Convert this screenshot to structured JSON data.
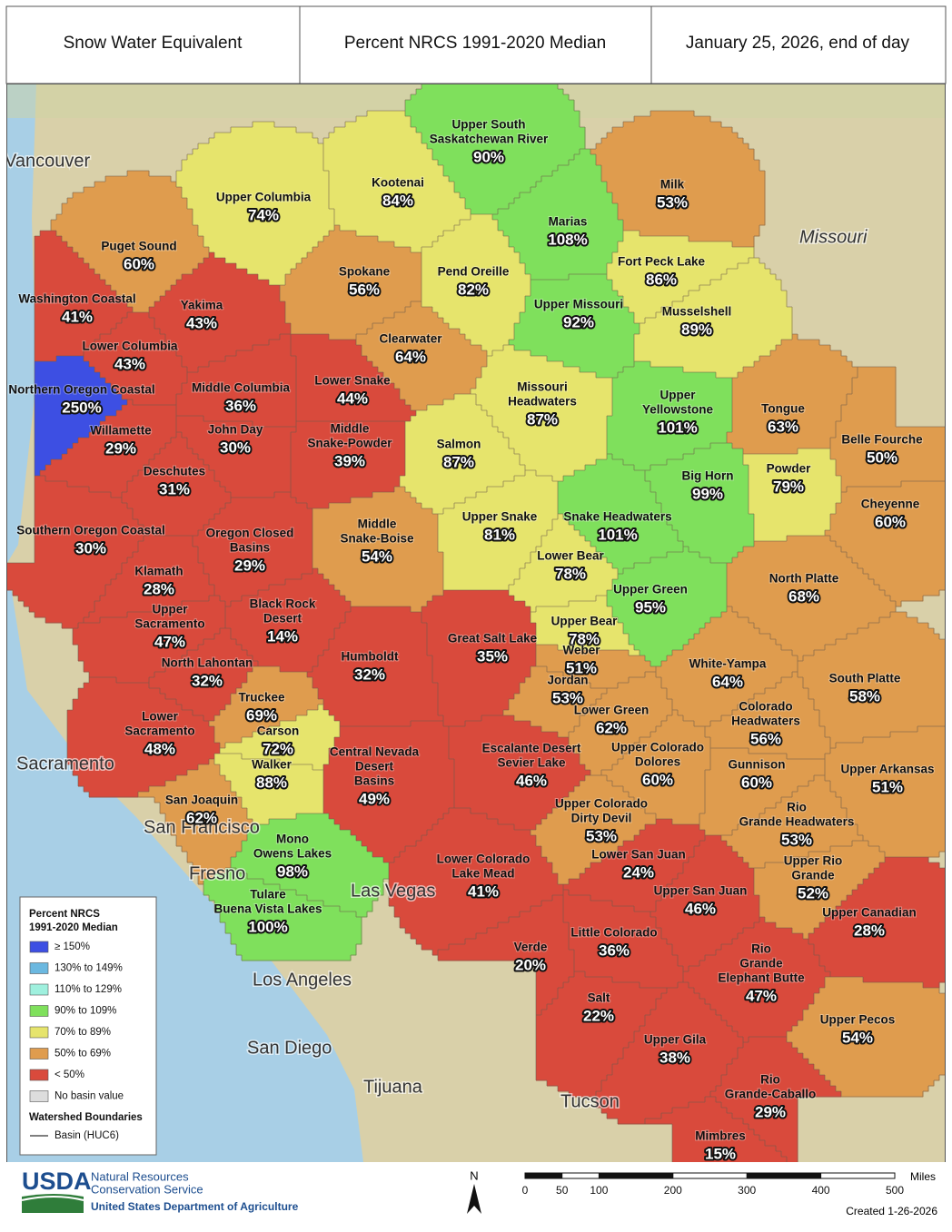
{
  "header": {
    "left": "Snow Water Equivalent",
    "center": "Percent NRCS 1991-2020 Median",
    "right": "January 25, 2026, end of day"
  },
  "basins": [
    {
      "name": [
        "Upper South",
        "Saskatchewan River"
      ],
      "percent": "90%",
      "color": "#7fe05c"
    },
    {
      "name": [
        "Kootenai"
      ],
      "percent": "84%",
      "color": "#e6e46c"
    },
    {
      "name": [
        "Upper Columbia"
      ],
      "percent": "74%",
      "color": "#e6e46c"
    },
    {
      "name": [
        "Milk"
      ],
      "percent": "53%",
      "color": "#df9c4e"
    },
    {
      "name": [
        "Marias"
      ],
      "percent": "108%",
      "color": "#7fe05c"
    },
    {
      "name": [
        "Puget Sound"
      ],
      "percent": "60%",
      "color": "#df9c4e"
    },
    {
      "name": [
        "Spokane"
      ],
      "percent": "56%",
      "color": "#df9c4e"
    },
    {
      "name": [
        "Pend Oreille"
      ],
      "percent": "82%",
      "color": "#e6e46c"
    },
    {
      "name": [
        "Fort Peck Lake"
      ],
      "percent": "86%",
      "color": "#e6e46c"
    },
    {
      "name": [
        "Washington Coastal"
      ],
      "percent": "41%",
      "color": "#d94a3c"
    },
    {
      "name": [
        "Yakima"
      ],
      "percent": "43%",
      "color": "#d94a3c"
    },
    {
      "name": [
        "Upper Missouri"
      ],
      "percent": "92%",
      "color": "#7fe05c"
    },
    {
      "name": [
        "Musselshell"
      ],
      "percent": "89%",
      "color": "#e6e46c"
    },
    {
      "name": [
        "Clearwater"
      ],
      "percent": "64%",
      "color": "#df9c4e"
    },
    {
      "name": [
        "Lower Columbia"
      ],
      "percent": "43%",
      "color": "#d94a3c"
    },
    {
      "name": [
        "Northern Oregon Coastal"
      ],
      "percent": "250%",
      "color": "#3d4fe3"
    },
    {
      "name": [
        "Middle Columbia"
      ],
      "percent": "36%",
      "color": "#d94a3c"
    },
    {
      "name": [
        "Lower Snake"
      ],
      "percent": "44%",
      "color": "#d94a3c"
    },
    {
      "name": [
        "Missouri",
        "Headwaters"
      ],
      "percent": "87%",
      "color": "#e6e46c"
    },
    {
      "name": [
        "Upper",
        "Yellowstone"
      ],
      "percent": "101%",
      "color": "#7fe05c"
    },
    {
      "name": [
        "Tongue"
      ],
      "percent": "63%",
      "color": "#df9c4e"
    },
    {
      "name": [
        "Willamette"
      ],
      "percent": "29%",
      "color": "#d94a3c"
    },
    {
      "name": [
        "John Day"
      ],
      "percent": "30%",
      "color": "#d94a3c"
    },
    {
      "name": [
        "Middle",
        "Snake-Powder"
      ],
      "percent": "39%",
      "color": "#d94a3c"
    },
    {
      "name": [
        "Salmon"
      ],
      "percent": "87%",
      "color": "#e6e46c"
    },
    {
      "name": [
        "Belle Fourche"
      ],
      "percent": "50%",
      "color": "#df9c4e"
    },
    {
      "name": [
        "Powder"
      ],
      "percent": "79%",
      "color": "#e6e46c"
    },
    {
      "name": [
        "Big Horn"
      ],
      "percent": "99%",
      "color": "#7fe05c"
    },
    {
      "name": [
        "Deschutes"
      ],
      "percent": "31%",
      "color": "#d94a3c"
    },
    {
      "name": [
        "Cheyenne"
      ],
      "percent": "60%",
      "color": "#df9c4e"
    },
    {
      "name": [
        "Southern Oregon Coastal"
      ],
      "percent": "30%",
      "color": "#d94a3c"
    },
    {
      "name": [
        "Oregon Closed",
        "Basins"
      ],
      "percent": "29%",
      "color": "#d94a3c"
    },
    {
      "name": [
        "Middle",
        "Snake-Boise"
      ],
      "percent": "54%",
      "color": "#df9c4e"
    },
    {
      "name": [
        "Upper Snake"
      ],
      "percent": "81%",
      "color": "#e6e46c"
    },
    {
      "name": [
        "Snake Headwaters"
      ],
      "percent": "101%",
      "color": "#7fe05c"
    },
    {
      "name": [
        "Lower Bear"
      ],
      "percent": "78%",
      "color": "#e6e46c"
    },
    {
      "name": [
        "North Platte"
      ],
      "percent": "68%",
      "color": "#df9c4e"
    },
    {
      "name": [
        "Klamath"
      ],
      "percent": "28%",
      "color": "#d94a3c"
    },
    {
      "name": [
        "Upper",
        "Sacramento"
      ],
      "percent": "47%",
      "color": "#d94a3c"
    },
    {
      "name": [
        "Black Rock",
        "Desert"
      ],
      "percent": "14%",
      "color": "#d94a3c"
    },
    {
      "name": [
        "Upper Green"
      ],
      "percent": "95%",
      "color": "#7fe05c"
    },
    {
      "name": [
        "Upper Bear"
      ],
      "percent": "78%",
      "color": "#e6e46c"
    },
    {
      "name": [
        "Great Salt Lake"
      ],
      "percent": "35%",
      "color": "#d94a3c"
    },
    {
      "name": [
        "Weber"
      ],
      "percent": "51%",
      "color": "#df9c4e"
    },
    {
      "name": [
        "North Lahontan"
      ],
      "percent": "32%",
      "color": "#d94a3c"
    },
    {
      "name": [
        "Humboldt"
      ],
      "percent": "32%",
      "color": "#d94a3c"
    },
    {
      "name": [
        "White-Yampa"
      ],
      "percent": "64%",
      "color": "#df9c4e"
    },
    {
      "name": [
        "South Platte"
      ],
      "percent": "58%",
      "color": "#df9c4e"
    },
    {
      "name": [
        "Jordan"
      ],
      "percent": "53%",
      "color": "#df9c4e"
    },
    {
      "name": [
        "Truckee"
      ],
      "percent": "69%",
      "color": "#df9c4e"
    },
    {
      "name": [
        "Lower",
        "Sacramento"
      ],
      "percent": "48%",
      "color": "#d94a3c"
    },
    {
      "name": [
        "Lower Green"
      ],
      "percent": "62%",
      "color": "#df9c4e"
    },
    {
      "name": [
        "Colorado",
        "Headwaters"
      ],
      "percent": "56%",
      "color": "#df9c4e"
    },
    {
      "name": [
        "Carson"
      ],
      "percent": "72%",
      "color": "#e6e46c"
    },
    {
      "name": [
        "Central Nevada",
        "Desert",
        "Basins"
      ],
      "percent": "49%",
      "color": "#d94a3c"
    },
    {
      "name": [
        "Escalante Desert",
        "Sevier Lake"
      ],
      "percent": "46%",
      "color": "#d94a3c"
    },
    {
      "name": [
        "Upper Colorado",
        "Dolores"
      ],
      "percent": "60%",
      "color": "#df9c4e"
    },
    {
      "name": [
        "Gunnison"
      ],
      "percent": "60%",
      "color": "#df9c4e"
    },
    {
      "name": [
        "Upper Arkansas"
      ],
      "percent": "51%",
      "color": "#df9c4e"
    },
    {
      "name": [
        "Walker"
      ],
      "percent": "88%",
      "color": "#e6e46c"
    },
    {
      "name": [
        "San Joaquin"
      ],
      "percent": "62%",
      "color": "#df9c4e"
    },
    {
      "name": [
        "Upper Colorado",
        "Dirty Devil"
      ],
      "percent": "53%",
      "color": "#df9c4e"
    },
    {
      "name": [
        "Rio",
        "Grande Headwaters"
      ],
      "percent": "53%",
      "color": "#df9c4e"
    },
    {
      "name": [
        "Mono",
        "Owens Lakes"
      ],
      "percent": "98%",
      "color": "#7fe05c"
    },
    {
      "name": [
        "Lower Colorado",
        "Lake Mead"
      ],
      "percent": "41%",
      "color": "#d94a3c"
    },
    {
      "name": [
        "Lower San Juan"
      ],
      "percent": "24%",
      "color": "#d94a3c"
    },
    {
      "name": [
        "Upper Rio",
        "Grande"
      ],
      "percent": "52%",
      "color": "#df9c4e"
    },
    {
      "name": [
        "Upper San Juan"
      ],
      "percent": "46%",
      "color": "#d94a3c"
    },
    {
      "name": [
        "Tulare",
        "Buena Vista Lakes"
      ],
      "percent": "100%",
      "color": "#7fe05c"
    },
    {
      "name": [
        "Upper Canadian"
      ],
      "percent": "28%",
      "color": "#d94a3c"
    },
    {
      "name": [
        "Verde"
      ],
      "percent": "20%",
      "color": "#d94a3c"
    },
    {
      "name": [
        "Little Colorado"
      ],
      "percent": "36%",
      "color": "#d94a3c"
    },
    {
      "name": [
        "Rio",
        "Grande",
        "Elephant Butte"
      ],
      "percent": "47%",
      "color": "#d94a3c"
    },
    {
      "name": [
        "Salt"
      ],
      "percent": "22%",
      "color": "#d94a3c"
    },
    {
      "name": [
        "Upper Pecos"
      ],
      "percent": "54%",
      "color": "#df9c4e"
    },
    {
      "name": [
        "Upper Gila"
      ],
      "percent": "38%",
      "color": "#d94a3c"
    },
    {
      "name": [
        "Rio",
        "Grande-Caballo"
      ],
      "percent": "29%",
      "color": "#d94a3c"
    },
    {
      "name": [
        "Mimbres"
      ],
      "percent": "15%",
      "color": "#d94a3c"
    }
  ],
  "places": [
    "Vancouver",
    "Sacramento",
    "San Francisco",
    "Fresno",
    "Las Vegas",
    "Los Angeles",
    "San Diego",
    "Tijuana",
    "Tucson",
    "Missouri"
  ],
  "legend": {
    "title": [
      "Percent NRCS",
      "1991-2020 Median"
    ],
    "items": [
      {
        "label": "≥ 150%",
        "color": "#3d4fe3"
      },
      {
        "label": "130% to 149%",
        "color": "#6bb8e0"
      },
      {
        "label": "110% to 129%",
        "color": "#9ff0de"
      },
      {
        "label": "90% to 109%",
        "color": "#7fe05c"
      },
      {
        "label": "70% to 89%",
        "color": "#e6e46c"
      },
      {
        "label": "50% to 69%",
        "color": "#df9c4e"
      },
      {
        "label": "< 50%",
        "color": "#d94a3c"
      },
      {
        "label": "No basin value",
        "color": "#dddddd"
      }
    ],
    "boundaries_title": "Watershed Boundaries",
    "boundary_item": "Basin (HUC6)"
  },
  "scale": {
    "unit": "Miles",
    "ticks": [
      0,
      50,
      100,
      200,
      300,
      400,
      500
    ]
  },
  "north": "N",
  "footer": {
    "logo": "USDA",
    "agency": [
      "Natural Resources",
      "Conservation Service"
    ],
    "department": "United States Department of Agriculture",
    "created": "Created 1-26-2026"
  }
}
